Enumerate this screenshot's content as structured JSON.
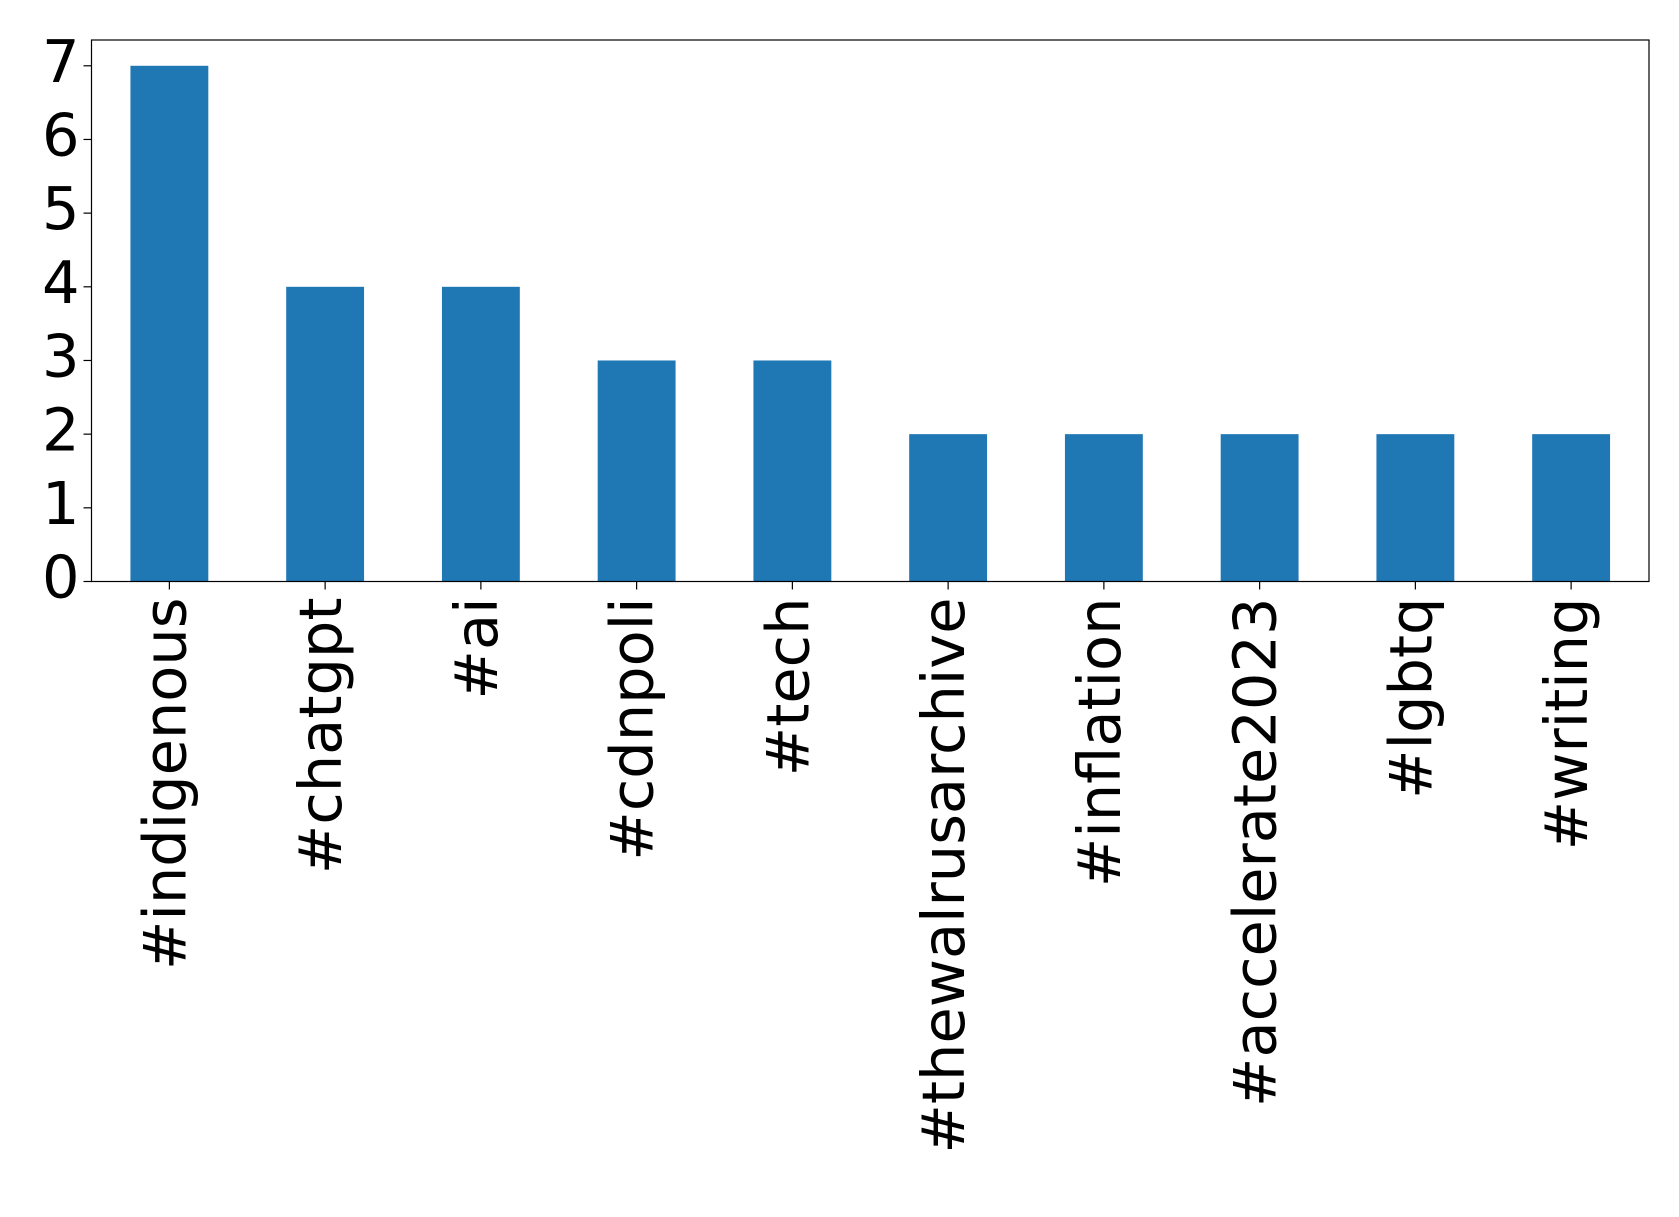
{
  "chart_data": {
    "type": "bar",
    "categories": [
      "#indigenous",
      "#chatgpt",
      "#ai",
      "#cdnpoli",
      "#tech",
      "#thewalrusarchive",
      "#inflation",
      "#accelerate2023",
      "#lgbtq",
      "#writing"
    ],
    "values": [
      7,
      4,
      4,
      3,
      3,
      2,
      2,
      2,
      2,
      2
    ],
    "color": "#1f77b4",
    "ylim": [
      0,
      7.35
    ],
    "yticks": [
      0,
      1,
      2,
      3,
      4,
      5,
      6,
      7
    ],
    "grid": false
  }
}
